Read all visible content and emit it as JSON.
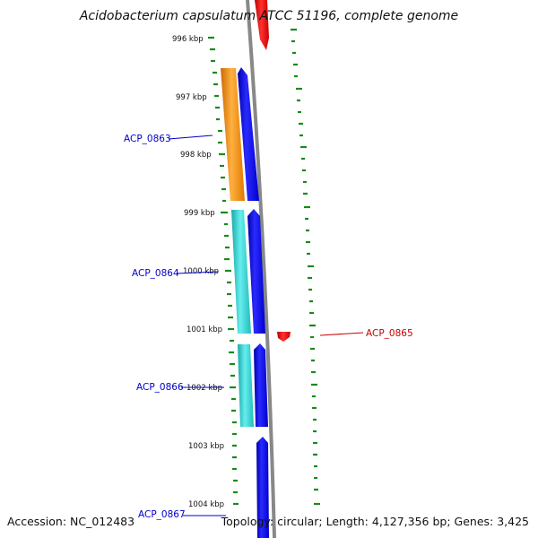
{
  "title": "Acidobacterium capsulatum ATCC 51196, complete genome",
  "footer": {
    "accession": "Accession: NC_012483",
    "summary": "Topology: circular; Length: 4,127,356 bp; Genes: 3,425"
  },
  "colors": {
    "backbone": "#888888",
    "forward_gene": "#0000ee",
    "reverse_gene": "#ee0000",
    "orange_feature": "#ff9900",
    "cyan_feature": "#22cccc",
    "gc_skew": "#1a8a1a",
    "label_forward": "#0000cc",
    "label_reverse": "#cc0000"
  },
  "ticks": [
    "996 kbp",
    "997 kbp",
    "998 kbp",
    "999 kbp",
    "1000 kbp",
    "1001 kbp",
    "1002 kbp",
    "1003 kbp",
    "1004 kbp"
  ],
  "gene_labels": [
    {
      "name": "ACP_0863",
      "strand": "forward"
    },
    {
      "name": "ACP_0864",
      "strand": "forward"
    },
    {
      "name": "ACP_0865",
      "strand": "reverse"
    },
    {
      "name": "ACP_0866",
      "strand": "forward"
    },
    {
      "name": "ACP_0867",
      "strand": "forward"
    }
  ]
}
